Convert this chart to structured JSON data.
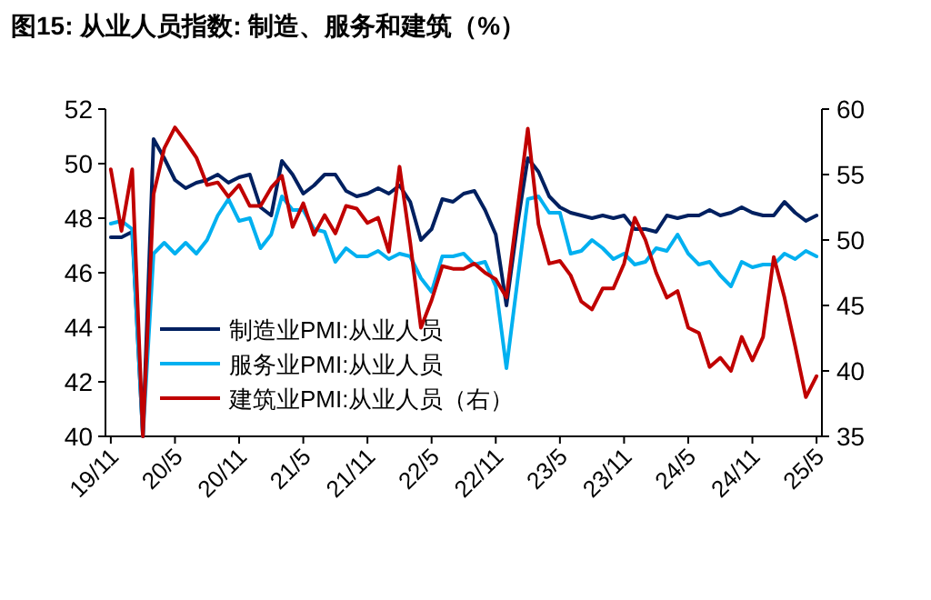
{
  "chart_data": {
    "type": "line",
    "title": "图15: 从业人员指数: 制造、服务和建筑（%）",
    "categories": [
      "19/11",
      null,
      null,
      null,
      null,
      null,
      "20/5",
      null,
      null,
      null,
      null,
      null,
      "20/11",
      null,
      null,
      null,
      null,
      null,
      "21/5",
      null,
      null,
      null,
      null,
      null,
      "21/11",
      null,
      null,
      null,
      null,
      null,
      "22/5",
      null,
      null,
      null,
      null,
      null,
      "22/11",
      null,
      null,
      null,
      null,
      null,
      "23/5",
      null,
      null,
      null,
      null,
      null,
      "23/11",
      null,
      null,
      null,
      null,
      null,
      "24/5",
      null,
      null,
      null,
      null,
      null,
      "24/11",
      null,
      null,
      null,
      null,
      null,
      "25/5"
    ],
    "series": [
      {
        "name": "制造业PMI:从业人员",
        "color": "#002060",
        "values": [
          47.3,
          47.3,
          47.5,
          40,
          50.9,
          50.2,
          49.4,
          49.1,
          49.3,
          49.4,
          49.6,
          49.3,
          49.5,
          49.6,
          48.4,
          48.1,
          50.1,
          49.6,
          48.9,
          49.2,
          49.6,
          49.6,
          49.0,
          48.8,
          48.9,
          49.1,
          48.9,
          49.2,
          48.6,
          47.2,
          47.6,
          48.7,
          48.6,
          48.9,
          49.0,
          48.3,
          47.4,
          44.8,
          47.7,
          50.2,
          49.7,
          48.8,
          48.4,
          48.2,
          48.1,
          48.0,
          48.1,
          48.0,
          48.1,
          47.6,
          47.6,
          47.5,
          48.1,
          48.0,
          48.1,
          48.1,
          48.3,
          48.1,
          48.2,
          48.4,
          48.2,
          48.1,
          48.1,
          48.6,
          48.2,
          47.9,
          48.1
        ]
      },
      {
        "name": "服务业PMI:从业人员",
        "color": "#00b0f0",
        "values": [
          47.8,
          47.9,
          47.6,
          40,
          46.7,
          47.1,
          46.7,
          47.1,
          46.7,
          47.2,
          48.1,
          48.7,
          47.9,
          48.0,
          46.9,
          47.4,
          48.8,
          48.3,
          48.3,
          47.6,
          47.5,
          46.4,
          46.9,
          46.6,
          46.6,
          46.8,
          46.5,
          46.7,
          46.6,
          45.8,
          45.3,
          46.6,
          46.6,
          46.7,
          46.3,
          46.4,
          45.5,
          42.5,
          45.6,
          48.7,
          48.8,
          48.2,
          48.2,
          46.7,
          46.8,
          47.2,
          46.9,
          46.5,
          46.7,
          46.3,
          46.4,
          46.9,
          46.8,
          47.4,
          46.7,
          46.3,
          46.4,
          45.9,
          45.5,
          46.4,
          46.2,
          46.3,
          46.3,
          46.7,
          46.5,
          46.8,
          46.6
        ]
      },
      {
        "name": "建筑业PMI:从业人员（右）",
        "color": "#c00000",
        "axis": "y2",
        "values": [
          55.4,
          50.7,
          55.4,
          35,
          53.5,
          57.0,
          58.6,
          57.5,
          56.3,
          54.2,
          54.4,
          53.3,
          54.2,
          52.6,
          52.6,
          54.0,
          54.9,
          51.0,
          52.8,
          50.4,
          51.9,
          50.5,
          52.6,
          52.4,
          51.3,
          51.7,
          49.1,
          55.6,
          49.8,
          43.3,
          45.4,
          48.0,
          47.8,
          47.8,
          48.2,
          47.5,
          47.0,
          45.6,
          52.1,
          58.5,
          51.2,
          48.2,
          48.4,
          47.3,
          45.3,
          44.7,
          46.3,
          46.3,
          48.2,
          51.7,
          50.0,
          47.5,
          45.6,
          46.1,
          43.3,
          42.9,
          40.3,
          41.0,
          40.0,
          42.6,
          40.8,
          42.6,
          48.7,
          45.6,
          41.9,
          38.0,
          39.6
        ]
      }
    ],
    "ylim": [
      40,
      52
    ],
    "yticks": [
      40,
      42,
      44,
      46,
      48,
      50,
      52
    ],
    "y2lim": [
      35,
      60
    ],
    "y2ticks": [
      35,
      40,
      45,
      50,
      55,
      60
    ],
    "legend": "bottom left",
    "marker": "none",
    "line_style": "solid"
  }
}
